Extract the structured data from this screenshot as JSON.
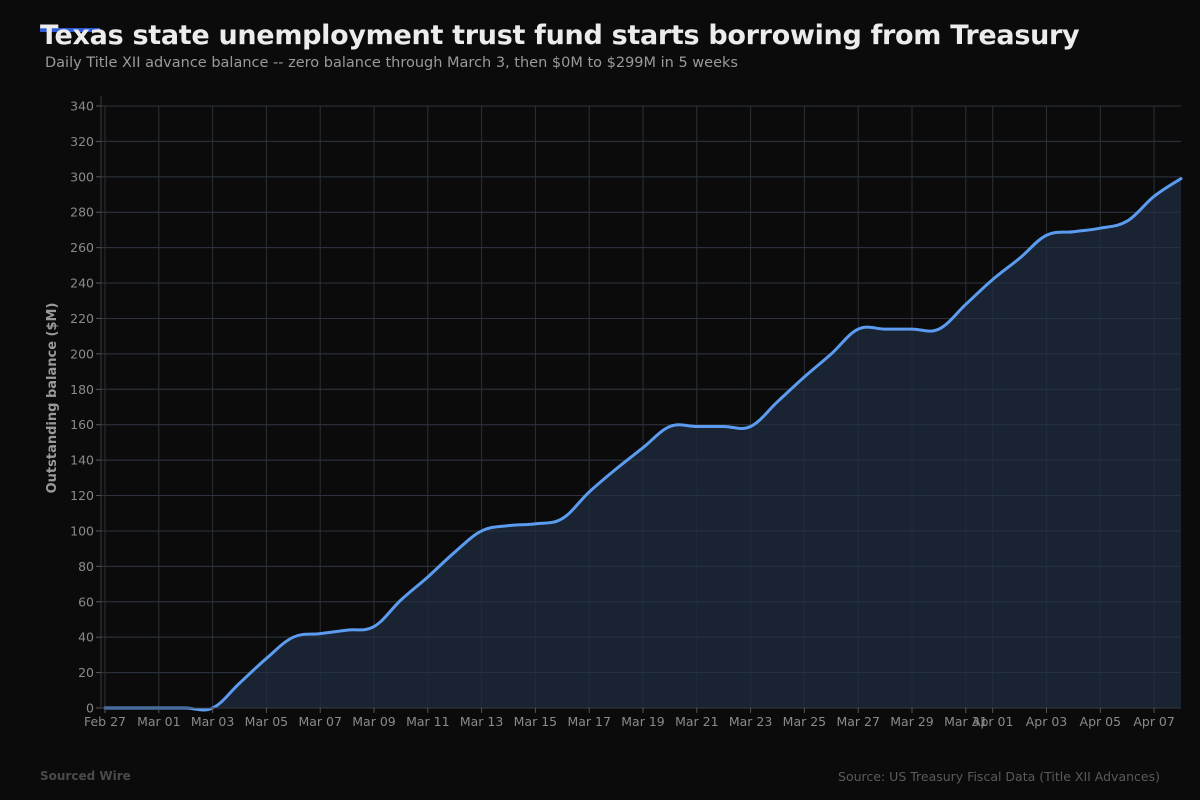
{
  "header": {
    "title": "Texas state unemployment trust fund starts borrowing from Treasury",
    "subtitle": "Daily Title XII advance balance -- zero balance through March 3, then $0M to $299M in 5 weeks"
  },
  "footer": {
    "brand": "Sourced Wire",
    "source": "Source: US Treasury Fiscal Data (Title XII Advances)"
  },
  "colors": {
    "background": "#0b0b0b",
    "line": "#5b9cf0",
    "area": "#1a2535",
    "grid": "#2a2a2a",
    "accent": "#2f5bd8"
  },
  "chart_data": {
    "type": "area",
    "title": "Texas state unemployment trust fund starts borrowing from Treasury",
    "subtitle": "Daily Title XII advance balance -- zero balance through March 3, then $0M to $299M in 5 weeks",
    "xlabel": "",
    "ylabel": "Outstanding balance ($M)",
    "ylim": [
      0,
      340
    ],
    "yticks": [
      0,
      20,
      40,
      60,
      80,
      100,
      120,
      140,
      160,
      180,
      200,
      220,
      240,
      260,
      280,
      300,
      320,
      340
    ],
    "xtick_labels": [
      "Feb 27",
      "Mar 01",
      "Mar 03",
      "Mar 05",
      "Mar 07",
      "Mar 09",
      "Mar 11",
      "Mar 13",
      "Mar 15",
      "Mar 17",
      "Mar 19",
      "Mar 21",
      "Mar 23",
      "Mar 25",
      "Mar 27",
      "Mar 29",
      "Mar 31",
      "Apr 01",
      "Apr 03",
      "Apr 05",
      "Apr 07"
    ],
    "xtick_days": [
      0,
      2,
      4,
      6,
      8,
      10,
      12,
      14,
      16,
      18,
      20,
      22,
      24,
      26,
      28,
      30,
      32,
      33,
      35,
      37,
      39
    ],
    "grid": true,
    "legend": null,
    "series": [
      {
        "name": "Outstanding balance ($M)",
        "x": [
          "Feb 27",
          "Feb 28",
          "Mar 01",
          "Mar 02",
          "Mar 03",
          "Mar 04",
          "Mar 05",
          "Mar 06",
          "Mar 07",
          "Mar 08",
          "Mar 09",
          "Mar 10",
          "Mar 11",
          "Mar 12",
          "Mar 13",
          "Mar 14",
          "Mar 15",
          "Mar 16",
          "Mar 17",
          "Mar 18",
          "Mar 19",
          "Mar 20",
          "Mar 21",
          "Mar 22",
          "Mar 23",
          "Mar 24",
          "Mar 25",
          "Mar 26",
          "Mar 27",
          "Mar 28",
          "Mar 29",
          "Mar 30",
          "Mar 31",
          "Apr 01",
          "Apr 02",
          "Apr 03",
          "Apr 04",
          "Apr 05",
          "Apr 06",
          "Apr 07",
          "Apr 08"
        ],
        "values": [
          0,
          0,
          0,
          0,
          0,
          14,
          28,
          40,
          42,
          44,
          46,
          61,
          74,
          88,
          100,
          103,
          104,
          107,
          122,
          135,
          147,
          159,
          159,
          159,
          159,
          173,
          187,
          200,
          214,
          214,
          214,
          214,
          228,
          242,
          254,
          267,
          269,
          271,
          275,
          289,
          299
        ]
      }
    ]
  }
}
